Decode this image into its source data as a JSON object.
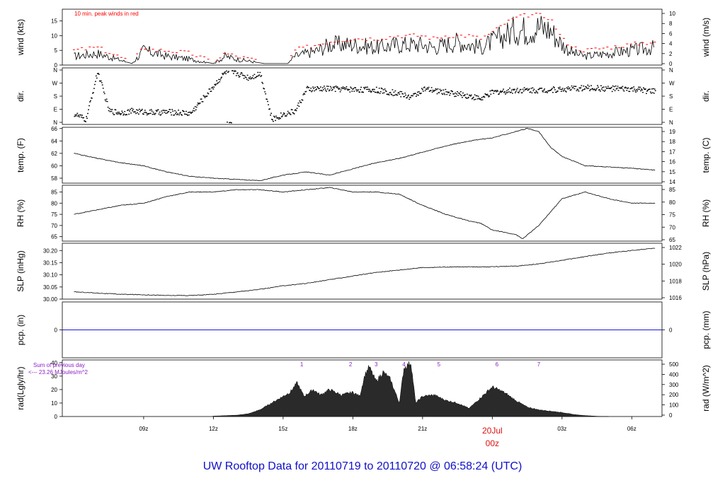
{
  "footer": {
    "title": "UW Rooftop Data for 20110719  to  20110720 @ 06:58:24  (UTC)"
  },
  "time_axis": {
    "ticks": [
      "09z",
      "12z",
      "15z",
      "18z",
      "21z",
      "20Jul",
      "03z",
      "06z"
    ],
    "date_label": "20Jul",
    "date_sublabel": "00z"
  },
  "colors": {
    "line": "#000000",
    "peak": "#ff0000",
    "precip": "#1a1adf",
    "annotation": "#8a1fc6",
    "date": "#dd1111",
    "fill": "#2a2a2a"
  },
  "chart_data": [
    {
      "type": "line",
      "ylabel_left": "wind (kts)",
      "ylabel_right": "wind (m/s)",
      "annotation": "10 min. peak winds in red",
      "yticks_left": [
        "0",
        "5",
        "10",
        "15"
      ],
      "yticks_right": [
        "0",
        "2",
        "4",
        "6",
        "8",
        "10"
      ],
      "ylim": [
        0,
        19
      ],
      "x": [
        6,
        7,
        8.5,
        9,
        9.5,
        10,
        11,
        12,
        12.5,
        13,
        14.2,
        15.2,
        15.5,
        16,
        16.5,
        17,
        18,
        19,
        20,
        21,
        21.5,
        22,
        22.5,
        23,
        23.5,
        24,
        24.5,
        25,
        25.5,
        26,
        26.5,
        27,
        27.5,
        28,
        29,
        30,
        31
      ],
      "series": [
        {
          "values": [
            3,
            4,
            0.5,
            5,
            4,
            3,
            2,
            0.5,
            3,
            2,
            0.5,
            0.5,
            3,
            4,
            5,
            7,
            7,
            6,
            7,
            7,
            6,
            7,
            8,
            7,
            6,
            8,
            10,
            12,
            12,
            13,
            12,
            7,
            4,
            3,
            4,
            5,
            6
          ]
        },
        {
          "values": [
            5,
            6,
            1,
            6,
            5,
            5,
            4,
            1,
            4,
            3,
            1,
            1,
            5,
            6,
            7,
            8,
            9,
            9,
            10,
            10,
            9,
            10,
            10,
            10,
            9,
            11,
            14,
            16,
            17,
            17,
            16,
            9,
            6,
            5,
            6,
            7,
            8
          ]
        }
      ]
    },
    {
      "type": "scatter",
      "ylabel_left": "dir.",
      "ylabel_right": "dir.",
      "yticks_left": [
        "N",
        "E",
        "S",
        "W",
        "N"
      ],
      "yticks_right": [
        "N",
        "E",
        "S",
        "W",
        "N"
      ],
      "ylim": [
        0,
        360
      ],
      "x": [
        6,
        6.5,
        7,
        7.5,
        8,
        8.5,
        9,
        9.5,
        10,
        10.5,
        11,
        12.5,
        13,
        13.5,
        14,
        14.5,
        15,
        15.5,
        16,
        17,
        18,
        19,
        20,
        20.5,
        21,
        22,
        23,
        23.5,
        24,
        25,
        26,
        27,
        28,
        29,
        30,
        31
      ],
      "series": [
        {
          "values": [
            60,
            20,
            350,
            80,
            70,
            80,
            75,
            70,
            75,
            70,
            65,
            350,
            340,
            310,
            340,
            20,
            60,
            80,
            230,
            235,
            230,
            225,
            200,
            175,
            230,
            210,
            185,
            165,
            210,
            225,
            225,
            230,
            240,
            235,
            230,
            215
          ]
        }
      ]
    },
    {
      "type": "line",
      "ylabel_left": "temp. (F)",
      "ylabel_right": "temp. (C)",
      "yticks_left": [
        "58",
        "60",
        "62",
        "64",
        "66"
      ],
      "yticks_right": [
        "14",
        "15",
        "16",
        "17",
        "18",
        "19"
      ],
      "ylim": [
        57.2,
        66.2
      ],
      "x": [
        6,
        7,
        8,
        9,
        10,
        11,
        12,
        13,
        14,
        15,
        16,
        17,
        18,
        19,
        20,
        21,
        22,
        23,
        24,
        25,
        25.5,
        26,
        26.5,
        27,
        28,
        29,
        30,
        31
      ],
      "series": [
        {
          "values": [
            62,
            61.2,
            60.5,
            60,
            59,
            58.3,
            58,
            57.8,
            57.6,
            58.5,
            59,
            58.5,
            59.5,
            60.5,
            61.2,
            62.2,
            63.2,
            64,
            64.5,
            65.5,
            66,
            65.5,
            63,
            61.5,
            60,
            59.8,
            59.6,
            59.3
          ]
        }
      ]
    },
    {
      "type": "line",
      "ylabel_left": "RH (%)",
      "ylabel_right": "RH (%)",
      "yticks_left": [
        "65",
        "70",
        "75",
        "80",
        "85"
      ],
      "yticks_right": [
        "65",
        "70",
        "75",
        "80",
        "85"
      ],
      "ylim": [
        63,
        88
      ],
      "x": [
        6,
        7,
        8,
        9,
        10,
        11,
        12,
        13,
        14,
        15,
        16,
        17,
        18,
        19,
        20,
        21,
        22,
        23,
        23.5,
        24,
        25,
        25.3,
        26,
        26.5,
        27,
        28,
        29,
        30,
        31
      ],
      "series": [
        {
          "values": [
            75,
            77,
            79,
            80,
            83,
            85,
            85,
            86,
            86,
            85,
            86,
            87,
            85,
            85,
            84,
            79,
            75,
            72,
            71,
            68,
            66,
            64,
            70,
            76,
            82,
            85,
            82,
            80,
            80
          ]
        }
      ]
    },
    {
      "type": "line",
      "ylabel_left": "SLP (inHg)",
      "ylabel_right": "SLP (hPa)",
      "yticks_left": [
        "30.00",
        "30.05",
        "30.10",
        "30.15",
        "30.20"
      ],
      "yticks_right": [
        "1016",
        "1018",
        "1020",
        "1022"
      ],
      "ylim": [
        30.0,
        30.23
      ],
      "x": [
        6,
        7,
        8,
        9,
        10,
        11,
        12,
        13,
        14,
        15,
        16,
        17,
        18,
        19,
        20,
        21,
        22,
        23,
        24,
        25,
        26,
        27,
        28,
        29,
        30,
        31
      ],
      "series": [
        {
          "values": [
            30.03,
            30.025,
            30.02,
            30.018,
            30.015,
            30.015,
            30.02,
            30.03,
            30.04,
            30.055,
            30.065,
            30.08,
            30.095,
            30.11,
            30.12,
            30.13,
            30.132,
            30.133,
            30.133,
            30.136,
            30.145,
            30.16,
            30.175,
            30.19,
            30.2,
            30.21
          ]
        }
      ]
    },
    {
      "type": "line",
      "ylabel_left": "pcp. (in)",
      "ylabel_right": "pcp. (mm)",
      "yticks_left": [
        "0"
      ],
      "yticks_right": [
        "0"
      ],
      "ylim": [
        -1,
        1
      ],
      "x": [
        6,
        31
      ],
      "series": [
        {
          "values": [
            0,
            0
          ]
        }
      ]
    },
    {
      "type": "area",
      "ylabel_left": "rad(Lgly/hr)",
      "ylabel_right": "rad (W/m^2)",
      "annotation_1": "Sum of previous day",
      "annotation_2": "<--- 23.26 MJoules/m^2",
      "yticks_left": [
        "0",
        "10",
        "20",
        "30",
        "40"
      ],
      "yticks_right": [
        "0",
        "100",
        "200",
        "300",
        "400",
        "500"
      ],
      "ylim": [
        0,
        42
      ],
      "hour_labels": [
        "1",
        "2",
        "3",
        "4",
        "5",
        "6",
        "7"
      ],
      "hour_label_x": [
        15.8,
        17.9,
        19,
        20.2,
        21.7,
        24.2,
        26
      ],
      "x": [
        11.95,
        12,
        13,
        13.5,
        14,
        14.5,
        15,
        15.3,
        15.6,
        15.9,
        16.3,
        16.6,
        17,
        17.5,
        18,
        18.3,
        18.5,
        18.7,
        19,
        19.3,
        19.6,
        20,
        20.2,
        20.5,
        20.7,
        21,
        21.5,
        22,
        22.5,
        23,
        23.5,
        24,
        24.5,
        25,
        25.5,
        26,
        26.5,
        27,
        27.5,
        28,
        28.5,
        29
      ],
      "series": [
        {
          "values": [
            0,
            0.3,
            1,
            2,
            5,
            10,
            15,
            18,
            25,
            15,
            20,
            16,
            20,
            16,
            18,
            15,
            30,
            37,
            26,
            33,
            28,
            10,
            36,
            40,
            10,
            15,
            16,
            12,
            10,
            6,
            14,
            22,
            18,
            12,
            7,
            5,
            4,
            3,
            1.5,
            0.7,
            0.2,
            0
          ]
        }
      ]
    }
  ]
}
